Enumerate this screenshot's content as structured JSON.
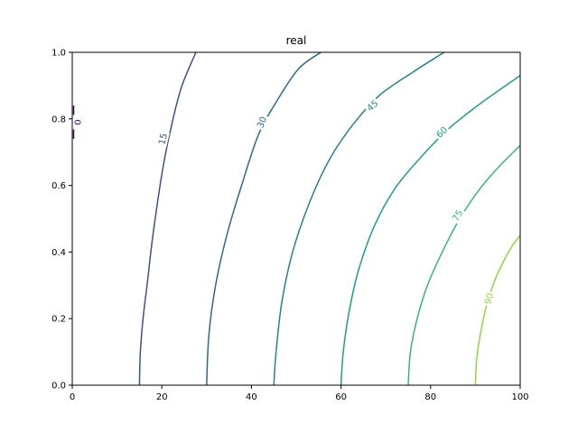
{
  "chart_data": {
    "type": "contour",
    "title": "real",
    "xlabel": "",
    "ylabel": "",
    "xlim": [
      0,
      100
    ],
    "ylim": [
      0,
      1
    ],
    "x_ticks": [
      0,
      20,
      40,
      60,
      80,
      100
    ],
    "y_ticks": [
      0.0,
      0.2,
      0.4,
      0.6,
      0.8,
      1.0
    ],
    "x_tick_labels": [
      "0",
      "20",
      "40",
      "60",
      "80",
      "100"
    ],
    "y_tick_labels": [
      "0.0",
      "0.2",
      "0.4",
      "0.6",
      "0.8",
      "1.0"
    ],
    "grid": false,
    "levels": [
      {
        "value": 0,
        "label": "0",
        "color": "#440154",
        "points": [
          [
            0.3,
            0.74
          ],
          [
            0.3,
            0.76
          ],
          [
            0.3,
            0.78
          ],
          [
            0.3,
            0.8
          ],
          [
            0.3,
            0.82
          ],
          [
            0.3,
            0.84
          ]
        ],
        "label_at": [
          1.2,
          0.79
        ]
      },
      {
        "value": 15,
        "label": "15",
        "color": "#3b528b",
        "points": [
          [
            15,
            0
          ],
          [
            15.2,
            0.1
          ],
          [
            15.8,
            0.2
          ],
          [
            16.7,
            0.3
          ],
          [
            18.0,
            0.45
          ],
          [
            20.2,
            0.65
          ],
          [
            22.5,
            0.8
          ],
          [
            24.5,
            0.9
          ],
          [
            27.6,
            1.0
          ]
        ],
        "label_at": [
          20.2,
          0.74
        ]
      },
      {
        "value": 30,
        "label": "30",
        "color": "#31688e",
        "points": [
          [
            30,
            0
          ],
          [
            30.5,
            0.15
          ],
          [
            32.0,
            0.3
          ],
          [
            34.5,
            0.45
          ],
          [
            37.8,
            0.6
          ],
          [
            41.5,
            0.75
          ],
          [
            45.5,
            0.85
          ],
          [
            50.5,
            0.95
          ],
          [
            55.5,
            1.0
          ]
        ],
        "label_at": [
          42.3,
          0.79
        ]
      },
      {
        "value": 45,
        "label": "45",
        "color": "#26828e",
        "points": [
          [
            45,
            0
          ],
          [
            45.5,
            0.1
          ],
          [
            46.8,
            0.25
          ],
          [
            49.2,
            0.4
          ],
          [
            53.0,
            0.55
          ],
          [
            57.5,
            0.68
          ],
          [
            62.5,
            0.78
          ],
          [
            68.5,
            0.87
          ],
          [
            76.0,
            0.94
          ],
          [
            83.0,
            1.0
          ]
        ],
        "label_at": [
          67.0,
          0.84
        ]
      },
      {
        "value": 60,
        "label": "60",
        "color": "#1f9e89",
        "points": [
          [
            60,
            0
          ],
          [
            60.5,
            0.1
          ],
          [
            61.8,
            0.22
          ],
          [
            64.0,
            0.35
          ],
          [
            67.5,
            0.48
          ],
          [
            72.0,
            0.59
          ],
          [
            77.5,
            0.68
          ],
          [
            84.0,
            0.77
          ],
          [
            91.5,
            0.85
          ],
          [
            100,
            0.93
          ]
        ],
        "label_at": [
          82.5,
          0.76
        ]
      },
      {
        "value": 75,
        "label": "75",
        "color": "#35b779",
        "points": [
          [
            75,
            0
          ],
          [
            75.5,
            0.1
          ],
          [
            77.0,
            0.2
          ],
          [
            79.3,
            0.3
          ],
          [
            82.6,
            0.4
          ],
          [
            86.5,
            0.5
          ],
          [
            91.0,
            0.59
          ],
          [
            95.5,
            0.66
          ],
          [
            100,
            0.72
          ]
        ],
        "label_at": [
          86.0,
          0.51
        ]
      },
      {
        "value": 90,
        "label": "90",
        "color": "#90d743",
        "points": [
          [
            90,
            0
          ],
          [
            90.3,
            0.08
          ],
          [
            91.2,
            0.16
          ],
          [
            92.5,
            0.24
          ],
          [
            94.2,
            0.31
          ],
          [
            96.2,
            0.37
          ],
          [
            98.3,
            0.42
          ],
          [
            100,
            0.45
          ]
        ],
        "label_at": [
          93.0,
          0.26
        ]
      }
    ]
  }
}
